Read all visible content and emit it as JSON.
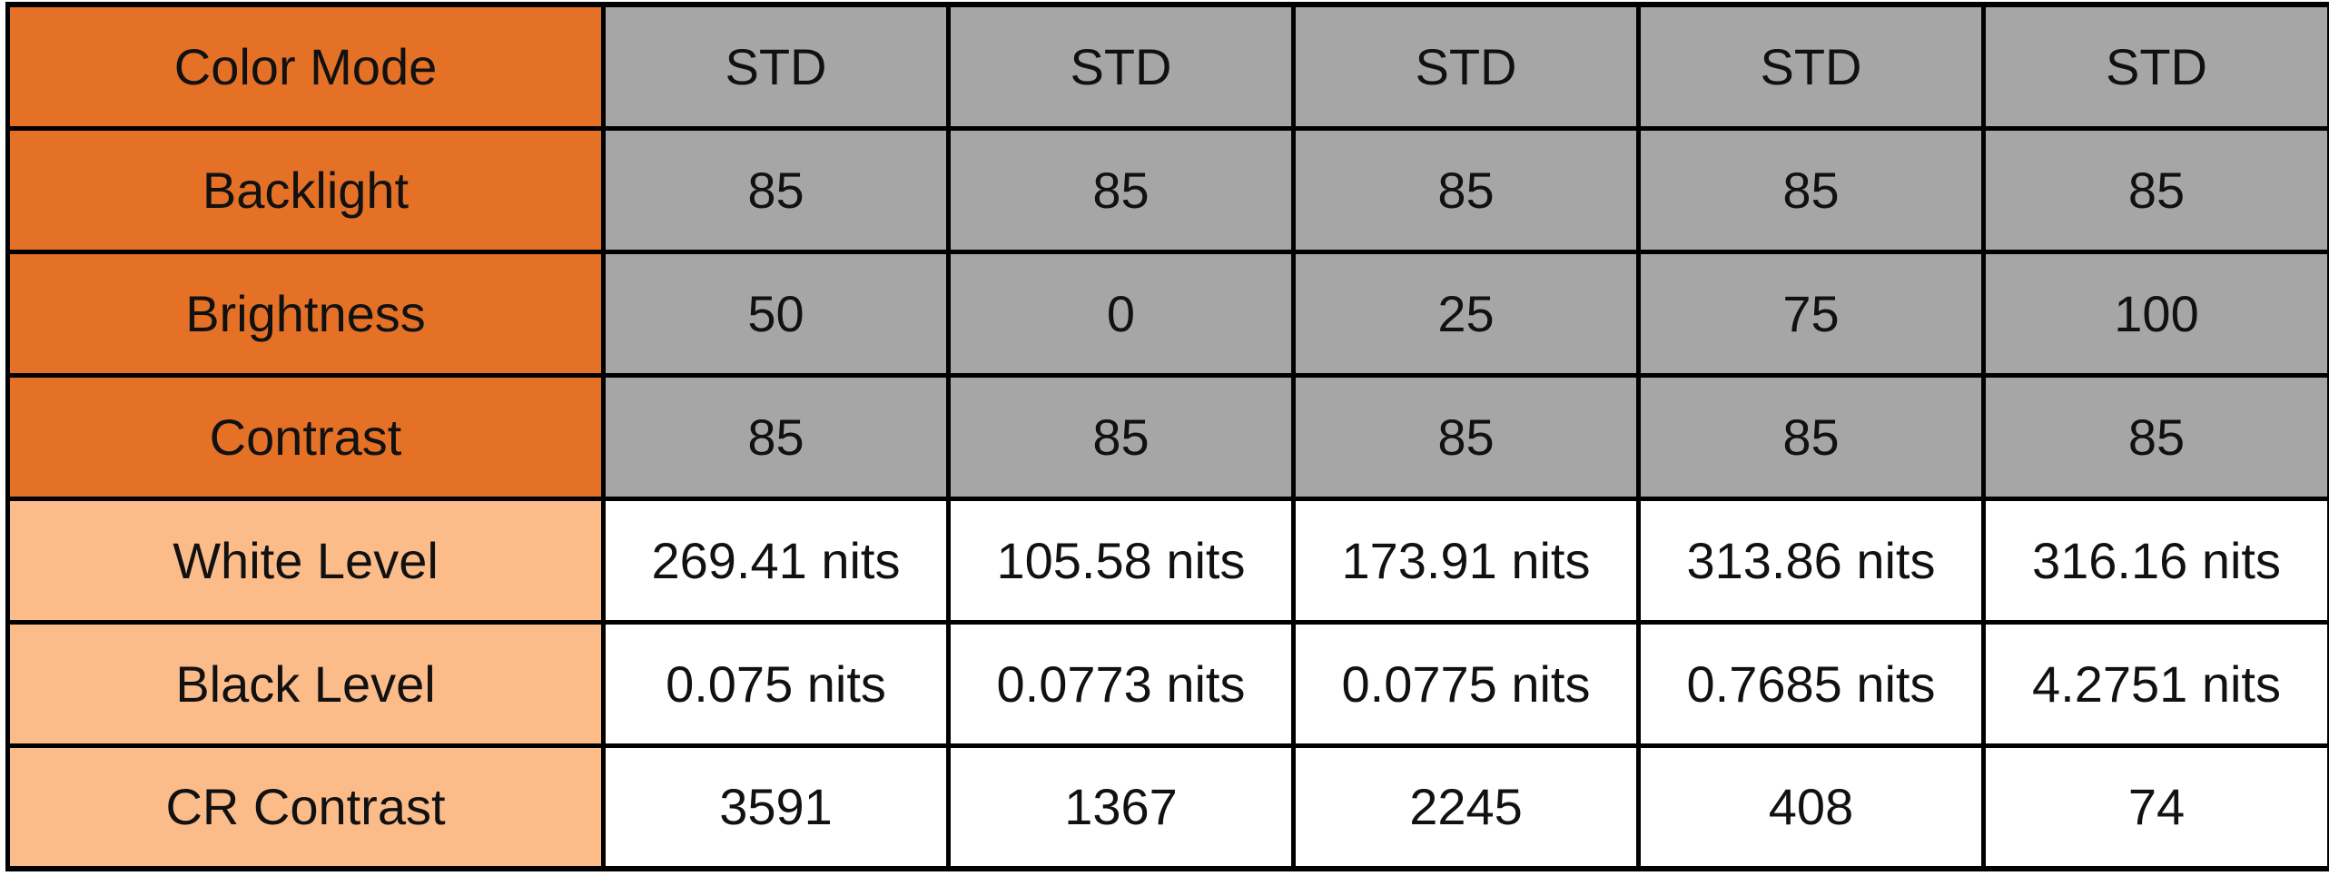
{
  "colors": {
    "label_dark": "#e57127",
    "label_light": "#fbbc8a",
    "value_grey": "#a6a6a6",
    "value_white": "#ffffff",
    "grid": "#000000"
  },
  "rows": [
    {
      "label": "Color Mode",
      "values": [
        "STD",
        "STD",
        "STD",
        "STD",
        "STD"
      ]
    },
    {
      "label": "Backlight",
      "values": [
        "85",
        "85",
        "85",
        "85",
        "85"
      ]
    },
    {
      "label": "Brightness",
      "values": [
        "50",
        "0",
        "25",
        "75",
        "100"
      ]
    },
    {
      "label": "Contrast",
      "values": [
        "85",
        "85",
        "85",
        "85",
        "85"
      ]
    },
    {
      "label": "White Level",
      "values": [
        "269.41 nits",
        "105.58 nits",
        "173.91 nits",
        "313.86 nits",
        "316.16 nits"
      ]
    },
    {
      "label": "Black Level",
      "values": [
        "0.075 nits",
        "0.0773 nits",
        "0.0775 nits",
        "0.7685 nits",
        "4.2751 nits"
      ]
    },
    {
      "label": "CR Contrast",
      "values": [
        "3591",
        "1367",
        "2245",
        "408",
        "74"
      ]
    }
  ]
}
